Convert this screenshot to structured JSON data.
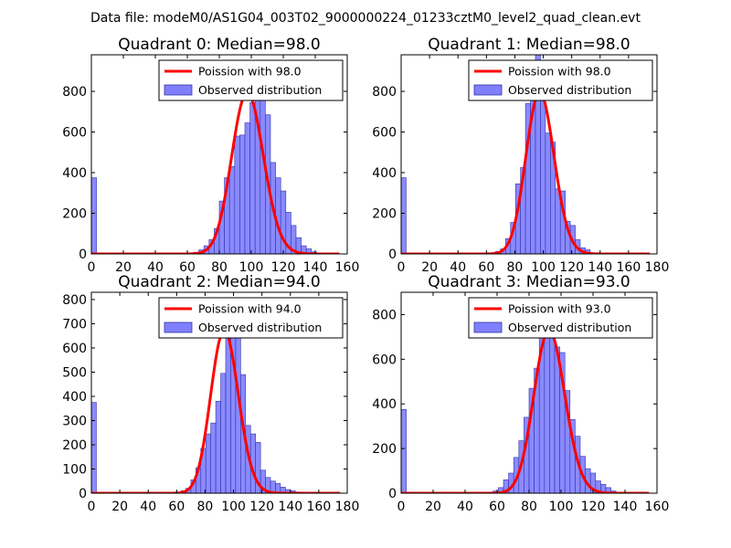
{
  "suptitle": "Data file: modeM0/AS1G04_003T02_9000000224_01233cztM0_level2_quad_clean.evt",
  "colors": {
    "hist_fill": "#8080ff",
    "hist_edge": "#3333aa",
    "line": "#ff0000",
    "axes": "#000000"
  },
  "chart_data": [
    {
      "type": "bar",
      "title": "Quadrant 0: Median=98.0",
      "median": 98.0,
      "xlim": [
        0,
        160
      ],
      "ylim": [
        0,
        980
      ],
      "xticks": [
        0,
        20,
        40,
        60,
        80,
        100,
        120,
        140,
        160
      ],
      "yticks": [
        0,
        200,
        400,
        600,
        800
      ],
      "legend": [
        "Poission with 98.0",
        "Observed distribution"
      ],
      "legend_loc": "top-right",
      "bin_width": 3.2,
      "bins": [
        [
          0,
          375
        ],
        [
          64,
          8
        ],
        [
          67.2,
          20
        ],
        [
          70.4,
          40
        ],
        [
          73.6,
          70
        ],
        [
          76.8,
          125
        ],
        [
          80,
          260
        ],
        [
          83.2,
          375
        ],
        [
          86.4,
          430
        ],
        [
          89.6,
          580
        ],
        [
          92.8,
          585
        ],
        [
          96,
          645
        ],
        [
          99.2,
          745
        ],
        [
          102.4,
          865
        ],
        [
          105.6,
          840
        ],
        [
          108.8,
          685
        ],
        [
          112,
          450
        ],
        [
          115.2,
          375
        ],
        [
          118.4,
          310
        ],
        [
          121.6,
          205
        ],
        [
          124.8,
          140
        ],
        [
          128,
          80
        ],
        [
          131.2,
          40
        ],
        [
          134.4,
          25
        ],
        [
          137.6,
          10
        ],
        [
          140.8,
          3
        ]
      ]
    },
    {
      "type": "bar",
      "title": "Quadrant 1: Median=98.0",
      "median": 98.0,
      "xlim": [
        0,
        180
      ],
      "ylim": [
        0,
        980
      ],
      "xticks": [
        0,
        20,
        40,
        60,
        80,
        100,
        120,
        140,
        160,
        180
      ],
      "yticks": [
        0,
        200,
        400,
        600,
        800
      ],
      "legend": [
        "Poission with 98.0",
        "Observed distribution"
      ],
      "legend_loc": "top-right",
      "bin_width": 3.5,
      "bins": [
        [
          0,
          375
        ],
        [
          66.5,
          12
        ],
        [
          70,
          25
        ],
        [
          73.5,
          75
        ],
        [
          77,
          155
        ],
        [
          80.5,
          345
        ],
        [
          84,
          425
        ],
        [
          87.5,
          740
        ],
        [
          91,
          810
        ],
        [
          94.5,
          985
        ],
        [
          98,
          820
        ],
        [
          101.5,
          595
        ],
        [
          105,
          550
        ],
        [
          108.5,
          320
        ],
        [
          112,
          310
        ],
        [
          115.5,
          160
        ],
        [
          119,
          140
        ],
        [
          122.5,
          70
        ],
        [
          126,
          30
        ],
        [
          129.5,
          20
        ],
        [
          133,
          5
        ]
      ]
    },
    {
      "type": "bar",
      "title": "Quadrant 2: Median=94.0",
      "median": 94.0,
      "xlim": [
        0,
        180
      ],
      "ylim": [
        0,
        830
      ],
      "xticks": [
        0,
        20,
        40,
        60,
        80,
        100,
        120,
        140,
        160,
        180
      ],
      "yticks": [
        0,
        100,
        200,
        300,
        400,
        500,
        600,
        700,
        800
      ],
      "legend": [
        "Poission with 94.0",
        "Observed distribution"
      ],
      "legend_loc": "top-right",
      "bin_width": 3.5,
      "bins": [
        [
          0,
          375
        ],
        [
          63,
          10
        ],
        [
          66.5,
          20
        ],
        [
          70,
          55
        ],
        [
          73.5,
          105
        ],
        [
          77,
          185
        ],
        [
          80.5,
          245
        ],
        [
          84,
          290
        ],
        [
          87.5,
          380
        ],
        [
          91,
          495
        ],
        [
          94.5,
          650
        ],
        [
          98,
          790
        ],
        [
          101.5,
          700
        ],
        [
          105,
          490
        ],
        [
          108.5,
          280
        ],
        [
          112,
          245
        ],
        [
          115.5,
          210
        ],
        [
          119,
          95
        ],
        [
          122.5,
          65
        ],
        [
          126,
          50
        ],
        [
          129.5,
          40
        ],
        [
          133,
          25
        ],
        [
          136.5,
          15
        ],
        [
          140,
          10
        ],
        [
          143.5,
          5
        ]
      ]
    },
    {
      "type": "bar",
      "title": "Quadrant 3: Median=93.0",
      "median": 93.0,
      "xlim": [
        0,
        160
      ],
      "ylim": [
        0,
        900
      ],
      "xticks": [
        0,
        20,
        40,
        60,
        80,
        100,
        120,
        140,
        160
      ],
      "yticks": [
        0,
        200,
        400,
        600,
        800
      ],
      "legend": [
        "Poission with 93.0",
        "Observed distribution"
      ],
      "legend_loc": "top-right",
      "bin_width": 3.2,
      "bins": [
        [
          0,
          375
        ],
        [
          54.4,
          5
        ],
        [
          57.6,
          10
        ],
        [
          60.8,
          25
        ],
        [
          64,
          60
        ],
        [
          67.2,
          90
        ],
        [
          70.4,
          160
        ],
        [
          73.6,
          235
        ],
        [
          76.8,
          340
        ],
        [
          80,
          470
        ],
        [
          83.2,
          560
        ],
        [
          86.4,
          700
        ],
        [
          89.6,
          845
        ],
        [
          92.8,
          840
        ],
        [
          96,
          655
        ],
        [
          99.2,
          630
        ],
        [
          102.4,
          460
        ],
        [
          105.6,
          330
        ],
        [
          108.8,
          255
        ],
        [
          112,
          165
        ],
        [
          115.2,
          110
        ],
        [
          118.4,
          90
        ],
        [
          121.6,
          55
        ],
        [
          124.8,
          40
        ],
        [
          128,
          25
        ],
        [
          131.2,
          10
        ]
      ]
    }
  ]
}
